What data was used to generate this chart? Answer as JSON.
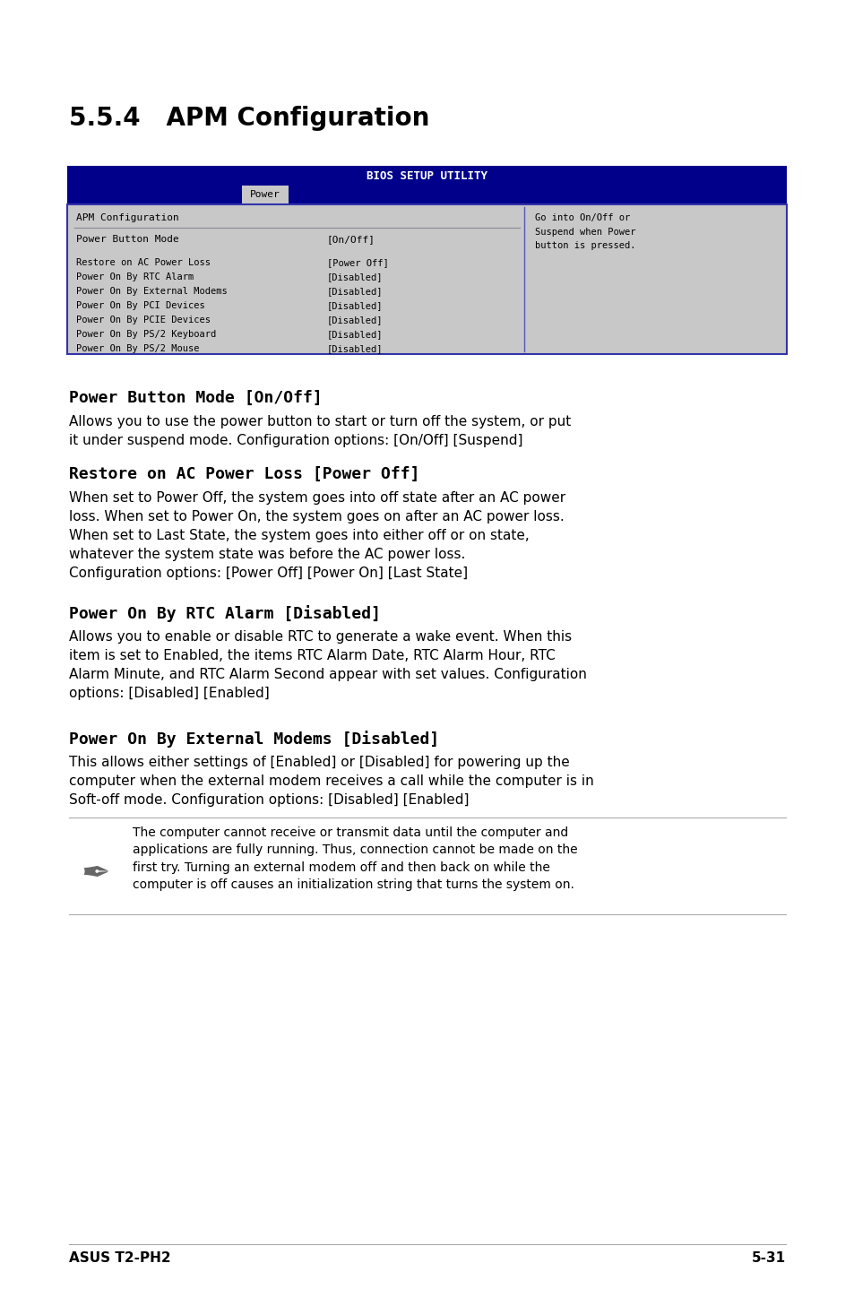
{
  "page_bg": "#ffffff",
  "title": "5.5.4   APM Configuration",
  "bios_header_text": "BIOS SETUP UTILITY",
  "bios_header_bg": "#00008B",
  "bios_header_text_color": "#ffffff",
  "bios_tab_text": "Power",
  "bios_body_bg": "#c8c8c8",
  "bios_border_color": "#00008B",
  "bios_help_text": "Go into On/Off or\nSuspend when Power\nbutton is pressed.",
  "section1_title": "Power Button Mode [On/Off]",
  "section1_body": "Allows you to use the power button to start or turn off the system, or put\nit under suspend mode. Configuration options: [On/Off] [Suspend]",
  "section2_title": "Restore on AC Power Loss [Power Off]",
  "section2_body": "When set to Power Off, the system goes into off state after an AC power\nloss. When set to Power On, the system goes on after an AC power loss.\nWhen set to Last State, the system goes into either off or on state,\nwhatever the system state was before the AC power loss.\nConfiguration options: [Power Off] [Power On] [Last State]",
  "section3_title": "Power On By RTC Alarm [Disabled]",
  "section3_body": "Allows you to enable or disable RTC to generate a wake event. When this\nitem is set to Enabled, the items RTC Alarm Date, RTC Alarm Hour, RTC\nAlarm Minute, and RTC Alarm Second appear with set values. Configuration\noptions: [Disabled] [Enabled]",
  "section4_title": "Power On By External Modems [Disabled]",
  "section4_body": "This allows either settings of [Enabled] or [Disabled] for powering up the\ncomputer when the external modem receives a call while the computer is in\nSoft-off mode. Configuration options: [Disabled] [Enabled]",
  "note_text": "The computer cannot receive or transmit data until the computer and\napplications are fully running. Thus, connection cannot be made on the\nfirst try. Turning an external modem off and then back on while the\ncomputer is off causes an initialization string that turns the system on.",
  "footer_left": "ASUS T2-PH2",
  "footer_right": "5-31"
}
